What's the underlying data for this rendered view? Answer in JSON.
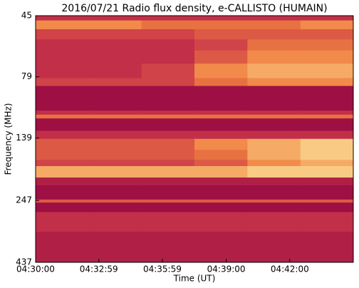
{
  "chart_data": {
    "type": "heatmap",
    "title": "2016/07/21  Radio flux density, e-CALLISTO (HUMAIN)",
    "xlabel": "Time (UT)",
    "ylabel": "Frequency (MHz)",
    "xbins": [
      16200,
      16350,
      16500,
      16650,
      16800,
      16950,
      17100
    ],
    "ybins": [
      45,
      47,
      51,
      56,
      62,
      70,
      80,
      86,
      108,
      112,
      116,
      130,
      140,
      155,
      170,
      180,
      200,
      215,
      245,
      252,
      275,
      330,
      437
    ],
    "values": [
      [
        3,
        3,
        3,
        3,
        3,
        3
      ],
      [
        7,
        7,
        6,
        6,
        6,
        7
      ],
      [
        4,
        4,
        4,
        5,
        5,
        5
      ],
      [
        3,
        3,
        3,
        4,
        6,
        6
      ],
      [
        3,
        3,
        3,
        5,
        7,
        7
      ],
      [
        3,
        3,
        4,
        7,
        8,
        8
      ],
      [
        4,
        4,
        4,
        6,
        7,
        7
      ],
      [
        1,
        1,
        1,
        1,
        1,
        1
      ],
      [
        3,
        3,
        3,
        3,
        3,
        3
      ],
      [
        6,
        6,
        6,
        6,
        6,
        6
      ],
      [
        1,
        1,
        1,
        1,
        1,
        1
      ],
      [
        3,
        3,
        3,
        3,
        3,
        3
      ],
      [
        5,
        5,
        5,
        7,
        8,
        9
      ],
      [
        5,
        5,
        5,
        6,
        8,
        9
      ],
      [
        4,
        4,
        4,
        5,
        7,
        8
      ],
      [
        8,
        8,
        8,
        8,
        9,
        9
      ],
      [
        2,
        2,
        2,
        2,
        2,
        2
      ],
      [
        1,
        1,
        1,
        1,
        1,
        1
      ],
      [
        5,
        5,
        5,
        5,
        5,
        5
      ],
      [
        1,
        1,
        1,
        1,
        1,
        1
      ],
      [
        3,
        3,
        3,
        3,
        3,
        3
      ],
      [
        2,
        2,
        2,
        2,
        2,
        2
      ]
    ],
    "vlim": [
      0,
      10
    ],
    "colormap": [
      "#8c0040",
      "#c8344a",
      "#f08040",
      "#fde9a0"
    ],
    "xlim": [
      16200,
      17100
    ],
    "xticks": [
      {
        "value": 16200,
        "label": "04:30:00"
      },
      {
        "value": 16379,
        "label": "04:32:59"
      },
      {
        "value": 16559,
        "label": "04:35:59"
      },
      {
        "value": 16740,
        "label": "04:39:00"
      },
      {
        "value": 16920,
        "label": "04:42:00"
      }
    ],
    "ylim": [
      45,
      437
    ],
    "ylog": true,
    "yreversed": true,
    "yticks": [
      45,
      79,
      139,
      247,
      437
    ]
  }
}
